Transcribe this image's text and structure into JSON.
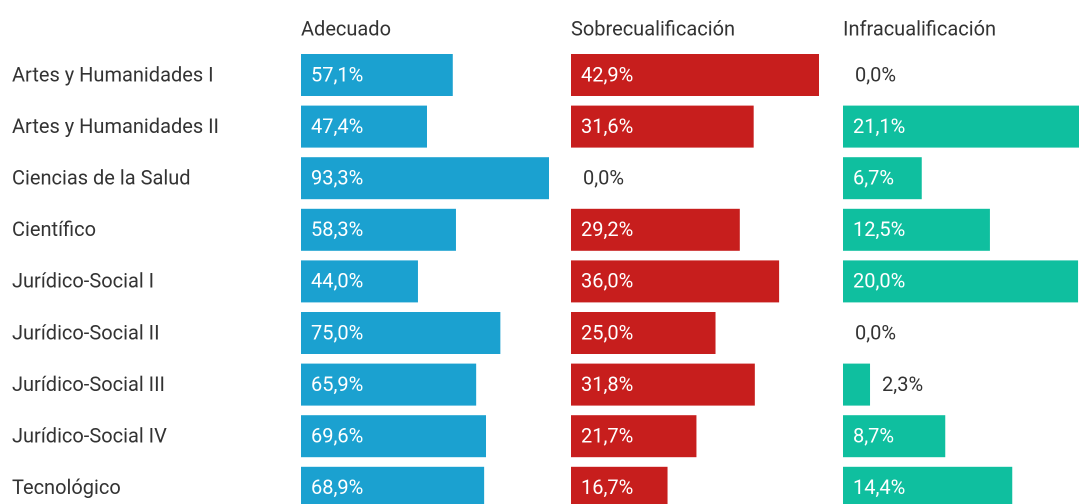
{
  "chart_data": {
    "type": "bar",
    "categories": [
      "Artes y Humanidades I",
      "Artes y Humanidades II",
      "Ciencias de la Salud",
      "Científico",
      "Jurídico-Social I",
      "Jurídico-Social II",
      "Jurídico-Social III",
      "Jurídico-Social IV",
      "Tecnológico"
    ],
    "series": [
      {
        "name": "Adecuado",
        "color": "#1ba1d0",
        "values": [
          57.1,
          47.4,
          93.3,
          58.3,
          44.0,
          75.0,
          65.9,
          69.6,
          68.9
        ],
        "value_labels": [
          "57,1%",
          "47,4%",
          "93,3%",
          "58,3%",
          "44,0%",
          "75,0%",
          "65,9%",
          "69,6%",
          "68,9%"
        ]
      },
      {
        "name": "Sobrecualificación",
        "color": "#c71e1d",
        "values": [
          42.9,
          31.6,
          0.0,
          29.2,
          36.0,
          25.0,
          31.8,
          21.7,
          16.7
        ],
        "value_labels": [
          "42,9%",
          "31,6%",
          "0,0%",
          "29,2%",
          "36,0%",
          "25,0%",
          "31,8%",
          "21,7%",
          "16,7%"
        ]
      },
      {
        "name": "Infracualificación",
        "color": "#0fbf9f",
        "values": [
          0.0,
          21.1,
          6.7,
          12.5,
          20.0,
          0.0,
          2.3,
          8.7,
          14.4
        ],
        "value_labels": [
          "0,0%",
          "21,1%",
          "6,7%",
          "12,5%",
          "20,0%",
          "0,0%",
          "2,3%",
          "8,7%",
          "14,4%"
        ]
      }
    ]
  }
}
